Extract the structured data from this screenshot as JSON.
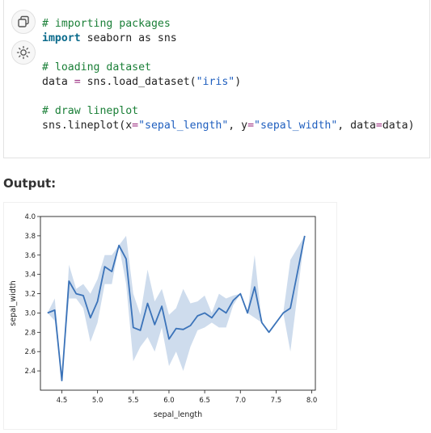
{
  "code_cell": {
    "copy_icon": "copy-icon",
    "run_icon": "sun-icon",
    "lines": [
      [
        {
          "t": "comment",
          "v": "# importing packages"
        }
      ],
      [
        {
          "t": "kw",
          "v": "import"
        },
        {
          "t": "txt",
          "v": " seaborn as sns"
        }
      ],
      [],
      [
        {
          "t": "comment",
          "v": "# loading dataset"
        }
      ],
      [
        {
          "t": "txt",
          "v": "data "
        },
        {
          "t": "op",
          "v": "="
        },
        {
          "t": "txt",
          "v": " sns.load_dataset("
        },
        {
          "t": "str",
          "v": "\"iris\""
        },
        {
          "t": "txt",
          "v": ")"
        }
      ],
      [],
      [
        {
          "t": "comment",
          "v": "# draw lineplot"
        }
      ],
      [
        {
          "t": "txt",
          "v": "sns.lineplot(x"
        },
        {
          "t": "op",
          "v": "="
        },
        {
          "t": "str",
          "v": "\"sepal_length\""
        },
        {
          "t": "txt",
          "v": ", y"
        },
        {
          "t": "op",
          "v": "="
        },
        {
          "t": "str",
          "v": "\"sepal_width\""
        },
        {
          "t": "txt",
          "v": ", data"
        },
        {
          "t": "op",
          "v": "="
        },
        {
          "t": "txt",
          "v": "data)"
        }
      ]
    ]
  },
  "output": {
    "label": "Output:"
  },
  "chart_data": {
    "type": "line",
    "xlabel": "sepal_length",
    "ylabel": "sepal_width",
    "xlim": [
      4.2,
      8.05
    ],
    "ylim": [
      2.2,
      4.0
    ],
    "xticks": [
      "4.5",
      "5.0",
      "5.5",
      "6.0",
      "6.5",
      "7.0",
      "7.5",
      "8.0"
    ],
    "yticks": [
      "2.4",
      "2.6",
      "2.8",
      "3.0",
      "3.2",
      "3.4",
      "3.6",
      "3.8",
      "4.0"
    ],
    "line_color": "#3b73b9",
    "band_color": "#3b73b9",
    "series": [
      {
        "x": [
          4.3,
          4.4,
          4.5,
          4.6,
          4.7,
          4.8,
          4.9,
          5.0,
          5.1,
          5.2,
          5.3,
          5.4,
          5.5,
          5.6,
          5.7,
          5.8,
          5.9,
          6.0,
          6.1,
          6.2,
          6.3,
          6.4,
          6.5,
          6.6,
          6.7,
          6.8,
          6.9,
          7.0,
          7.1,
          7.2,
          7.3,
          7.4,
          7.6,
          7.7,
          7.9
        ],
        "y": [
          3.0,
          3.03,
          2.3,
          3.33,
          3.2,
          3.18,
          2.95,
          3.12,
          3.48,
          3.43,
          3.7,
          3.56,
          2.85,
          2.82,
          3.1,
          2.88,
          3.07,
          2.73,
          2.84,
          2.83,
          2.87,
          2.97,
          3.0,
          2.95,
          3.05,
          3.0,
          3.13,
          3.2,
          3.0,
          3.27,
          2.9,
          2.8,
          3.0,
          3.05,
          3.8
        ],
        "lo": [
          3.0,
          2.92,
          2.3,
          3.15,
          3.15,
          3.05,
          2.7,
          2.9,
          3.3,
          3.3,
          3.7,
          3.3,
          2.5,
          2.65,
          2.75,
          2.6,
          2.85,
          2.45,
          2.6,
          2.4,
          2.65,
          2.82,
          2.85,
          2.9,
          2.85,
          2.85,
          3.08,
          3.2,
          3.0,
          2.95,
          2.9,
          2.8,
          3.0,
          2.6,
          3.8
        ],
        "hi": [
          3.0,
          3.15,
          2.3,
          3.5,
          3.25,
          3.3,
          3.2,
          3.35,
          3.6,
          3.6,
          3.7,
          3.8,
          3.2,
          2.98,
          3.45,
          3.12,
          3.25,
          2.98,
          3.05,
          3.25,
          3.1,
          3.12,
          3.18,
          3.0,
          3.2,
          3.15,
          3.18,
          3.2,
          3.0,
          3.6,
          2.9,
          2.8,
          3.0,
          3.55,
          3.8
        ]
      }
    ]
  }
}
